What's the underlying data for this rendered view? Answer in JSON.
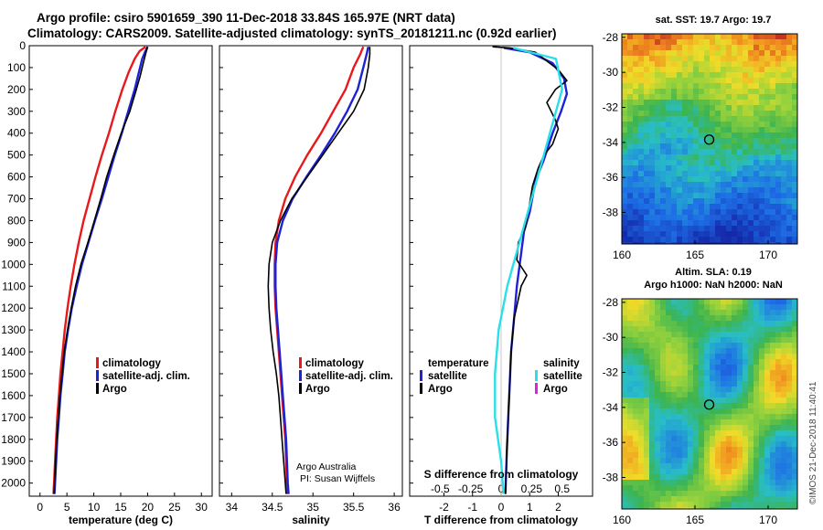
{
  "title_line1": "Argo profile: csiro 5901659_390 11-Dec-2018 33.84S 165.97E (NRT data)",
  "title_line2": "Climatology: CARS2009. Satellite-adjusted climatology: synTS_20181211.nc (0.92d earlier)",
  "colors": {
    "climatology": "#e8191c",
    "satellite": "#1e22d6",
    "argo": "#000000",
    "salinity_diff": "#29e0e8",
    "argo_salinity": "#e020e0"
  },
  "chart_data": [
    {
      "type": "line",
      "panel": "temperature",
      "xlabel": "temperature (deg C)",
      "xlim": [
        -2,
        32
      ],
      "xticks": [
        "0",
        "5",
        "10",
        "15",
        "20",
        "25",
        "30"
      ],
      "xtick_values": [
        0,
        5,
        10,
        15,
        20,
        25,
        30
      ],
      "ylim": [
        0,
        2060
      ],
      "yticks": [
        "0",
        "100",
        "200",
        "300",
        "400",
        "500",
        "600",
        "700",
        "800",
        "900",
        "1000",
        "1100",
        "1200",
        "1300",
        "1400",
        "1500",
        "1600",
        "1700",
        "1800",
        "1900",
        "2000"
      ],
      "ytick_values": [
        0,
        100,
        200,
        300,
        400,
        500,
        600,
        700,
        800,
        900,
        1000,
        1100,
        1200,
        1300,
        1400,
        1500,
        1600,
        1700,
        1800,
        1900,
        2000
      ],
      "legend": [
        "climatology",
        "satellite-adj. clim.",
        "Argo"
      ],
      "series": [
        {
          "name": "climatology",
          "color_key": "climatology",
          "points": [
            [
              19.6,
              5
            ],
            [
              18.5,
              25
            ],
            [
              17.6,
              60
            ],
            [
              16.5,
              120
            ],
            [
              15.3,
              200
            ],
            [
              14.0,
              300
            ],
            [
              12.8,
              400
            ],
            [
              11.5,
              500
            ],
            [
              10.3,
              600
            ],
            [
              9.2,
              700
            ],
            [
              8.1,
              800
            ],
            [
              7.2,
              900
            ],
            [
              6.4,
              1000
            ],
            [
              5.7,
              1100
            ],
            [
              5.1,
              1200
            ],
            [
              4.6,
              1300
            ],
            [
              4.2,
              1400
            ],
            [
              3.8,
              1500
            ],
            [
              3.5,
              1600
            ],
            [
              3.2,
              1700
            ],
            [
              3.0,
              1800
            ],
            [
              2.8,
              1900
            ],
            [
              2.6,
              2000
            ],
            [
              2.5,
              2050
            ]
          ]
        },
        {
          "name": "satellite-adj. clim.",
          "color_key": "satellite",
          "points": [
            [
              20.0,
              5
            ],
            [
              19.5,
              30
            ],
            [
              19.0,
              60
            ],
            [
              18.4,
              120
            ],
            [
              17.6,
              200
            ],
            [
              16.4,
              300
            ],
            [
              15.2,
              400
            ],
            [
              13.9,
              500
            ],
            [
              12.7,
              600
            ],
            [
              11.5,
              700
            ],
            [
              10.2,
              800
            ],
            [
              9.0,
              900
            ],
            [
              7.8,
              1000
            ],
            [
              6.8,
              1100
            ],
            [
              5.9,
              1200
            ],
            [
              5.2,
              1300
            ],
            [
              4.6,
              1400
            ],
            [
              4.2,
              1500
            ],
            [
              3.8,
              1600
            ],
            [
              3.5,
              1700
            ],
            [
              3.2,
              1800
            ],
            [
              3.0,
              1900
            ],
            [
              2.8,
              2000
            ],
            [
              2.7,
              2050
            ]
          ]
        },
        {
          "name": "Argo",
          "color_key": "argo",
          "points": [
            [
              20.0,
              5
            ],
            [
              19.6,
              40
            ],
            [
              19.2,
              80
            ],
            [
              18.6,
              140
            ],
            [
              17.9,
              200
            ],
            [
              16.7,
              300
            ],
            [
              15.1,
              400
            ],
            [
              13.7,
              500
            ],
            [
              12.4,
              600
            ],
            [
              11.3,
              700
            ],
            [
              10.1,
              800
            ],
            [
              8.9,
              900
            ],
            [
              7.6,
              1000
            ],
            [
              6.6,
              1100
            ],
            [
              5.8,
              1200
            ],
            [
              5.1,
              1300
            ],
            [
              4.5,
              1400
            ],
            [
              4.1,
              1500
            ],
            [
              3.7,
              1600
            ],
            [
              3.4,
              1700
            ],
            [
              3.1,
              1800
            ],
            [
              2.9,
              1900
            ],
            [
              2.7,
              2000
            ],
            [
              2.6,
              2050
            ]
          ]
        }
      ]
    },
    {
      "type": "line",
      "panel": "salinity",
      "xlabel": "salinity",
      "xlim": [
        33.85,
        36.1
      ],
      "xticks": [
        "34",
        "34.5",
        "35",
        "35.5",
        "36"
      ],
      "xtick_values": [
        34,
        34.5,
        35,
        35.5,
        36
      ],
      "ylim": [
        0,
        2060
      ],
      "legend": [
        "climatology",
        "satellite-adj. clim.",
        "Argo"
      ],
      "annotation": [
        "Argo Australia",
        "PI: Susan Wijffels"
      ],
      "series": [
        {
          "name": "climatology",
          "color_key": "climatology",
          "points": [
            [
              35.62,
              5
            ],
            [
              35.58,
              40
            ],
            [
              35.5,
              100
            ],
            [
              35.4,
              200
            ],
            [
              35.25,
              300
            ],
            [
              35.1,
              400
            ],
            [
              34.93,
              500
            ],
            [
              34.78,
              600
            ],
            [
              34.66,
              700
            ],
            [
              34.58,
              800
            ],
            [
              34.54,
              900
            ],
            [
              34.53,
              1000
            ],
            [
              34.53,
              1100
            ],
            [
              34.54,
              1200
            ],
            [
              34.56,
              1300
            ],
            [
              34.58,
              1400
            ],
            [
              34.6,
              1500
            ],
            [
              34.62,
              1600
            ],
            [
              34.64,
              1700
            ],
            [
              34.66,
              1800
            ],
            [
              34.67,
              1900
            ],
            [
              34.68,
              2000
            ],
            [
              34.69,
              2050
            ]
          ]
        },
        {
          "name": "satellite-adj. clim.",
          "color_key": "satellite",
          "points": [
            [
              35.68,
              5
            ],
            [
              35.66,
              40
            ],
            [
              35.62,
              100
            ],
            [
              35.55,
              200
            ],
            [
              35.42,
              300
            ],
            [
              35.27,
              400
            ],
            [
              35.1,
              500
            ],
            [
              34.92,
              600
            ],
            [
              34.75,
              700
            ],
            [
              34.63,
              800
            ],
            [
              34.56,
              900
            ],
            [
              34.54,
              1000
            ],
            [
              34.54,
              1100
            ],
            [
              34.55,
              1200
            ],
            [
              34.57,
              1300
            ],
            [
              34.59,
              1400
            ],
            [
              34.61,
              1500
            ],
            [
              34.63,
              1600
            ],
            [
              34.65,
              1700
            ],
            [
              34.67,
              1800
            ],
            [
              34.68,
              1900
            ],
            [
              34.69,
              2000
            ],
            [
              34.7,
              2050
            ]
          ]
        },
        {
          "name": "Argo",
          "color_key": "argo",
          "points": [
            [
              35.7,
              5
            ],
            [
              35.7,
              40
            ],
            [
              35.68,
              100
            ],
            [
              35.63,
              200
            ],
            [
              35.5,
              300
            ],
            [
              35.31,
              400
            ],
            [
              35.12,
              500
            ],
            [
              34.93,
              600
            ],
            [
              34.74,
              700
            ],
            [
              34.6,
              800
            ],
            [
              34.5,
              900
            ],
            [
              34.46,
              1000
            ],
            [
              34.45,
              1100
            ],
            [
              34.46,
              1200
            ],
            [
              34.48,
              1300
            ],
            [
              34.51,
              1400
            ],
            [
              34.55,
              1500
            ],
            [
              34.58,
              1600
            ],
            [
              34.6,
              1700
            ],
            [
              34.62,
              1800
            ],
            [
              34.64,
              1900
            ],
            [
              34.66,
              2000
            ],
            [
              34.67,
              2050
            ]
          ]
        }
      ]
    },
    {
      "type": "line",
      "panel": "difference",
      "xlabel": "T difference from climatology",
      "xlim": [
        -3.2,
        3.2
      ],
      "xticks": [
        "-2",
        "-1",
        "0",
        "1",
        "2"
      ],
      "xtick_values": [
        -2,
        -1,
        0,
        1,
        2
      ],
      "top_xlabel": "S difference from climatology",
      "top_xticks": [
        "-0.5",
        "-0.25",
        "0",
        "0.25",
        "0.5"
      ],
      "top_xtick_values": [
        -0.5,
        -0.25,
        0,
        0.25,
        0.5
      ],
      "ylim": [
        0,
        2060
      ],
      "legend_left_title": "temperature",
      "legend_left": [
        "satellite",
        "Argo"
      ],
      "legend_right_title": "salinity",
      "legend_right": [
        "satellite",
        "Argo"
      ],
      "series": [
        {
          "name": "T satellite",
          "color_key": "satellite",
          "points": [
            [
              0.1,
              10
            ],
            [
              1.0,
              30
            ],
            [
              1.8,
              80
            ],
            [
              2.2,
              150
            ],
            [
              2.3,
              220
            ],
            [
              2.1,
              300
            ],
            [
              1.8,
              400
            ],
            [
              1.5,
              520
            ],
            [
              1.2,
              620
            ],
            [
              1.0,
              760
            ],
            [
              0.8,
              850
            ],
            [
              0.7,
              950
            ],
            [
              0.55,
              1100
            ],
            [
              0.45,
              1250
            ],
            [
              0.35,
              1400
            ],
            [
              0.3,
              1550
            ],
            [
              0.25,
              1700
            ],
            [
              0.2,
              1850
            ],
            [
              0.15,
              2050
            ]
          ]
        },
        {
          "name": "T Argo",
          "color_key": "argo",
          "points": [
            [
              -0.3,
              5
            ],
            [
              0.3,
              10
            ],
            [
              1.2,
              30
            ],
            [
              1.6,
              70
            ],
            [
              2.0,
              110
            ],
            [
              2.3,
              160
            ],
            [
              1.9,
              200
            ],
            [
              1.6,
              260
            ],
            [
              1.9,
              340
            ],
            [
              2.0,
              380
            ],
            [
              1.8,
              450
            ],
            [
              1.5,
              500
            ],
            [
              1.3,
              560
            ],
            [
              1.1,
              640
            ],
            [
              0.95,
              760
            ],
            [
              0.85,
              830
            ],
            [
              0.6,
              900
            ],
            [
              0.55,
              980
            ],
            [
              0.9,
              1050
            ],
            [
              0.7,
              1100
            ],
            [
              0.45,
              1250
            ],
            [
              0.35,
              1400
            ],
            [
              0.3,
              1550
            ],
            [
              0.25,
              1700
            ],
            [
              0.2,
              1850
            ],
            [
              0.15,
              2050
            ]
          ]
        },
        {
          "name": "S satellite",
          "color_key": "salinity_diff",
          "points": [
            [
              0.1,
              10
            ],
            [
              0.45,
              60
            ],
            [
              0.5,
              200
            ],
            [
              0.45,
              300
            ],
            [
              0.35,
              500
            ],
            [
              0.25,
              700
            ],
            [
              0.15,
              900
            ],
            [
              0.05,
              1100
            ],
            [
              -0.02,
              1300
            ],
            [
              -0.05,
              1500
            ],
            [
              -0.05,
              1700
            ],
            [
              0.0,
              1900
            ],
            [
              0.02,
              2050
            ]
          ]
        }
      ]
    },
    {
      "type": "heatmap",
      "panel": "sst_map",
      "title": "sat. SST: 19.7 Argo: 19.7",
      "xticks": [
        "160",
        "165",
        "170"
      ],
      "yticks": [
        "-28",
        "-30",
        "-32",
        "-34",
        "-36",
        "-38"
      ],
      "xlim": [
        160,
        172
      ],
      "ylim": [
        -39.8,
        -27.8
      ],
      "marker": [
        165.97,
        -33.84
      ]
    },
    {
      "type": "heatmap",
      "panel": "sla_map",
      "title_line1": "Altim. SLA: 0.19",
      "title_line2": "Argo h1000: NaN h2000: NaN",
      "xticks": [
        "160",
        "165",
        "170"
      ],
      "yticks": [
        "-28",
        "-30",
        "-32",
        "-34",
        "-36",
        "-38"
      ],
      "xlim": [
        160,
        172
      ],
      "ylim": [
        -39.8,
        -27.8
      ],
      "marker": [
        165.97,
        -33.84
      ]
    }
  ],
  "credit": "©IMOS 21-Dec-2018 11:40:41"
}
